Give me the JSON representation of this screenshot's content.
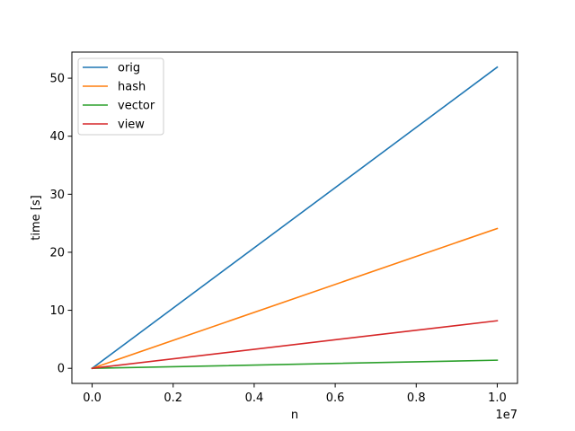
{
  "chart_data": {
    "type": "line",
    "xlabel": "n",
    "ylabel": "time [s]",
    "x_offset_label": "1e7",
    "xlim": [
      -0.05,
      1.05
    ],
    "ylim": [
      -2.6,
      54.5
    ],
    "x_ticks": [
      0.0,
      0.2,
      0.4,
      0.6,
      0.8,
      1.0
    ],
    "x_tick_labels": [
      "0.0",
      "0.2",
      "0.4",
      "0.6",
      "0.8",
      "1.0"
    ],
    "y_ticks": [
      0,
      10,
      20,
      30,
      40,
      50
    ],
    "y_tick_labels": [
      "0",
      "10",
      "20",
      "30",
      "40",
      "50"
    ],
    "grid": false,
    "legend_position": "upper-left",
    "series": [
      {
        "name": "orig",
        "color": "#1f77b4",
        "x": [
          0.0,
          1.0
        ],
        "y": [
          0.0,
          51.9
        ]
      },
      {
        "name": "hash",
        "color": "#ff7f0e",
        "x": [
          0.0,
          1.0
        ],
        "y": [
          0.0,
          24.1
        ]
      },
      {
        "name": "vector",
        "color": "#2ca02c",
        "x": [
          0.0,
          1.0
        ],
        "y": [
          0.0,
          1.4
        ]
      },
      {
        "name": "view",
        "color": "#d62728",
        "x": [
          0.0,
          1.0
        ],
        "y": [
          0.0,
          8.2
        ]
      }
    ]
  }
}
